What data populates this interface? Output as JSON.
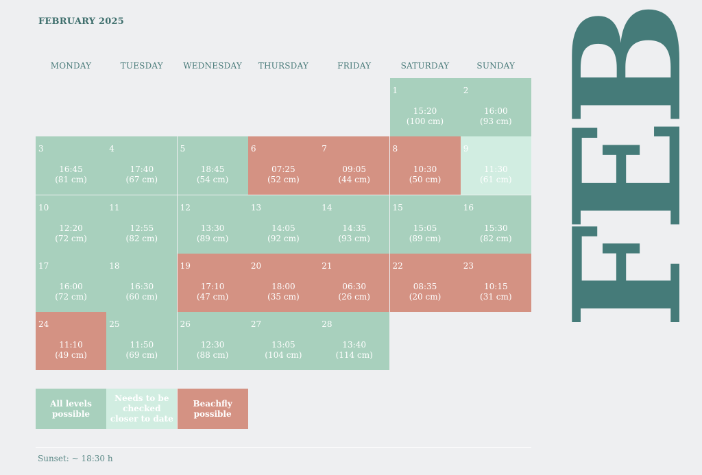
{
  "title": "FEBRUARY 2025",
  "side_text": "FEB",
  "days_of_week": [
    "MONDAY",
    "TUESDAY",
    "WEDNESDAY",
    "THURSDAY",
    "FRIDAY",
    "SATURDAY",
    "SUNDAY"
  ],
  "colors": {
    "all_levels": "#a8d0bd",
    "check_later": "#d1ede1",
    "beachfly": "#d49283",
    "accent": "#457b79"
  },
  "days": [
    {
      "day": "1",
      "time": "15:20",
      "height": "(100 cm)",
      "status": "green"
    },
    {
      "day": "2",
      "time": "16:00",
      "height": "(93 cm)",
      "status": "green"
    },
    {
      "day": "3",
      "time": "16:45",
      "height": "(81 cm)",
      "status": "green"
    },
    {
      "day": "4",
      "time": "17:40",
      "height": "(67 cm)",
      "status": "green"
    },
    {
      "day": "5",
      "time": "18:45",
      "height": "(54 cm)",
      "status": "green"
    },
    {
      "day": "6",
      "time": "07:25",
      "height": "(52 cm)",
      "status": "red"
    },
    {
      "day": "7",
      "time": "09:05",
      "height": "(44 cm)",
      "status": "red"
    },
    {
      "day": "8",
      "time": "10:30",
      "height": "(50 cm)",
      "status": "red"
    },
    {
      "day": "9",
      "time": "11:30",
      "height": "(61 cm)",
      "status": "light"
    },
    {
      "day": "10",
      "time": "12:20",
      "height": "(72 cm)",
      "status": "green"
    },
    {
      "day": "11",
      "time": "12:55",
      "height": "(82 cm)",
      "status": "green"
    },
    {
      "day": "12",
      "time": "13:30",
      "height": "(89 cm)",
      "status": "green"
    },
    {
      "day": "13",
      "time": "14:05",
      "height": "(92 cm)",
      "status": "green"
    },
    {
      "day": "14",
      "time": "14:35",
      "height": "(93 cm)",
      "status": "green"
    },
    {
      "day": "15",
      "time": "15:05",
      "height": "(89 cm)",
      "status": "green"
    },
    {
      "day": "16",
      "time": "15:30",
      "height": "(82 cm)",
      "status": "green"
    },
    {
      "day": "17",
      "time": "16:00",
      "height": "(72 cm)",
      "status": "green"
    },
    {
      "day": "18",
      "time": "16:30",
      "height": "(60 cm)",
      "status": "green"
    },
    {
      "day": "19",
      "time": "17:10",
      "height": "(47 cm)",
      "status": "red"
    },
    {
      "day": "20",
      "time": "18:00",
      "height": "(35 cm)",
      "status": "red"
    },
    {
      "day": "21",
      "time": "06:30",
      "height": "(26 cm)",
      "status": "red"
    },
    {
      "day": "22",
      "time": "08:35",
      "height": "(20 cm)",
      "status": "red"
    },
    {
      "day": "23",
      "time": "10:15",
      "height": "(31 cm)",
      "status": "red"
    },
    {
      "day": "24",
      "time": "11:10",
      "height": "(49 cm)",
      "status": "red"
    },
    {
      "day": "25",
      "time": "11:50",
      "height": "(69 cm)",
      "status": "green"
    },
    {
      "day": "26",
      "time": "12:30",
      "height": "(88 cm)",
      "status": "green"
    },
    {
      "day": "27",
      "time": "13:05",
      "height": "(104 cm)",
      "status": "green"
    },
    {
      "day": "28",
      "time": "13:40",
      "height": "(114 cm)",
      "status": "green"
    }
  ],
  "legend": [
    {
      "label": "All levels possible",
      "status": "green"
    },
    {
      "label": "Needs to be checked closer to date",
      "status": "light"
    },
    {
      "label": "Beachfly possible",
      "status": "red"
    }
  ],
  "footer": "Sunset: ~ 18:30 h"
}
